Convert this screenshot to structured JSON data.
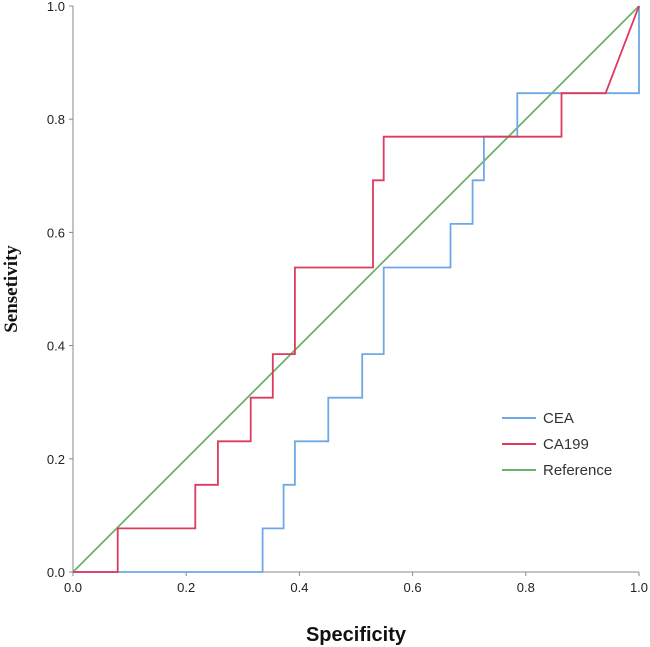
{
  "chart_data": {
    "type": "line",
    "title": "",
    "xlabel": "Specificity",
    "ylabel": "Sensetivity",
    "xlim": [
      0,
      1
    ],
    "ylim": [
      0,
      1
    ],
    "grid": false,
    "legend_position": "right-middle",
    "x_ticks": [
      "0.0",
      "0.2",
      "0.4",
      "0.6",
      "0.8",
      "1.0"
    ],
    "y_ticks": [
      "0.0",
      "0.2",
      "0.4",
      "0.6",
      "0.8",
      "1.0"
    ],
    "series": [
      {
        "name": "CEA",
        "color": "#6fa8e6",
        "points": [
          [
            0,
            0
          ],
          [
            0.335,
            0
          ],
          [
            0.335,
            0.077
          ],
          [
            0.372,
            0.077
          ],
          [
            0.372,
            0.154
          ],
          [
            0.392,
            0.154
          ],
          [
            0.392,
            0.231
          ],
          [
            0.451,
            0.231
          ],
          [
            0.451,
            0.308
          ],
          [
            0.511,
            0.308
          ],
          [
            0.511,
            0.385
          ],
          [
            0.549,
            0.385
          ],
          [
            0.549,
            0.538
          ],
          [
            0.667,
            0.538
          ],
          [
            0.667,
            0.615
          ],
          [
            0.706,
            0.615
          ],
          [
            0.706,
            0.692
          ],
          [
            0.726,
            0.692
          ],
          [
            0.726,
            0.769
          ],
          [
            0.785,
            0.769
          ],
          [
            0.785,
            0.846
          ],
          [
            1.0,
            0.846
          ],
          [
            1.0,
            1.0
          ]
        ]
      },
      {
        "name": "CA199",
        "color": "#dd3a5c",
        "points": [
          [
            0,
            0
          ],
          [
            0.079,
            0
          ],
          [
            0.079,
            0.077
          ],
          [
            0.216,
            0.077
          ],
          [
            0.216,
            0.154
          ],
          [
            0.256,
            0.154
          ],
          [
            0.256,
            0.231
          ],
          [
            0.314,
            0.231
          ],
          [
            0.314,
            0.308
          ],
          [
            0.353,
            0.308
          ],
          [
            0.353,
            0.385
          ],
          [
            0.392,
            0.385
          ],
          [
            0.392,
            0.538
          ],
          [
            0.53,
            0.538
          ],
          [
            0.53,
            0.692
          ],
          [
            0.549,
            0.692
          ],
          [
            0.549,
            0.769
          ],
          [
            0.863,
            0.769
          ],
          [
            0.863,
            0.846
          ],
          [
            0.941,
            0.846
          ],
          [
            1.0,
            1.0
          ]
        ]
      },
      {
        "name": "Reference",
        "color": "#6ab46a",
        "points": [
          [
            0,
            0
          ],
          [
            1,
            1
          ]
        ]
      }
    ]
  }
}
